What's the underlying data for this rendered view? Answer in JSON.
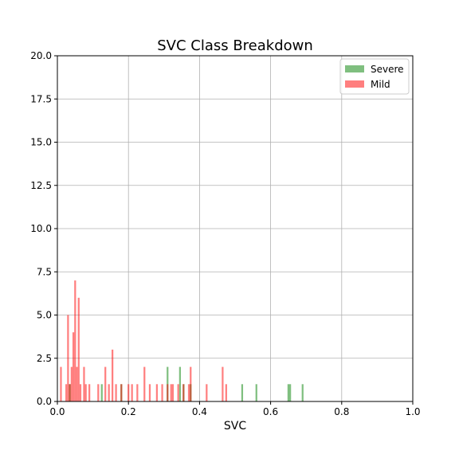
{
  "chart_data": {
    "type": "bar",
    "subtype": "overlaid-histogram",
    "title": "SVC Class Breakdown",
    "xlabel": "SVC",
    "ylabel": "",
    "xlim": [
      0.0,
      1.0
    ],
    "ylim": [
      0,
      20
    ],
    "bin_width": 0.005,
    "x_ticks": [
      "0.0",
      "0.2",
      "0.4",
      "0.6",
      "0.8",
      "1.0"
    ],
    "y_ticks": [
      "0.0",
      "2.5",
      "5.0",
      "7.5",
      "10.0",
      "12.5",
      "15.0",
      "17.5",
      "20.0"
    ],
    "grid": true,
    "legend_position": "top-right",
    "series": [
      {
        "name": "Severe",
        "color": "#008000",
        "opacity": 0.5,
        "bins": [
          {
            "x": 0.035,
            "count": 1
          },
          {
            "x": 0.125,
            "count": 1
          },
          {
            "x": 0.18,
            "count": 1
          },
          {
            "x": 0.31,
            "count": 2
          },
          {
            "x": 0.345,
            "count": 2
          },
          {
            "x": 0.355,
            "count": 1
          },
          {
            "x": 0.375,
            "count": 1
          },
          {
            "x": 0.52,
            "count": 1
          },
          {
            "x": 0.56,
            "count": 1
          },
          {
            "x": 0.65,
            "count": 1
          },
          {
            "x": 0.655,
            "count": 1
          },
          {
            "x": 0.69,
            "count": 1
          }
        ]
      },
      {
        "name": "Mild",
        "color": "#ff0000",
        "opacity": 0.5,
        "bins": [
          {
            "x": 0.01,
            "count": 2
          },
          {
            "x": 0.025,
            "count": 1
          },
          {
            "x": 0.03,
            "count": 5
          },
          {
            "x": 0.035,
            "count": 1
          },
          {
            "x": 0.04,
            "count": 2
          },
          {
            "x": 0.045,
            "count": 4
          },
          {
            "x": 0.05,
            "count": 7
          },
          {
            "x": 0.055,
            "count": 2
          },
          {
            "x": 0.06,
            "count": 6
          },
          {
            "x": 0.065,
            "count": 1
          },
          {
            "x": 0.075,
            "count": 2
          },
          {
            "x": 0.08,
            "count": 1
          },
          {
            "x": 0.09,
            "count": 1
          },
          {
            "x": 0.115,
            "count": 1
          },
          {
            "x": 0.135,
            "count": 2
          },
          {
            "x": 0.145,
            "count": 1
          },
          {
            "x": 0.155,
            "count": 3
          },
          {
            "x": 0.165,
            "count": 1
          },
          {
            "x": 0.18,
            "count": 1
          },
          {
            "x": 0.2,
            "count": 1
          },
          {
            "x": 0.21,
            "count": 1
          },
          {
            "x": 0.225,
            "count": 1
          },
          {
            "x": 0.245,
            "count": 2
          },
          {
            "x": 0.26,
            "count": 1
          },
          {
            "x": 0.28,
            "count": 1
          },
          {
            "x": 0.295,
            "count": 1
          },
          {
            "x": 0.31,
            "count": 1
          },
          {
            "x": 0.32,
            "count": 1
          },
          {
            "x": 0.325,
            "count": 1
          },
          {
            "x": 0.34,
            "count": 1
          },
          {
            "x": 0.355,
            "count": 1
          },
          {
            "x": 0.37,
            "count": 1
          },
          {
            "x": 0.375,
            "count": 2
          },
          {
            "x": 0.42,
            "count": 1
          },
          {
            "x": 0.465,
            "count": 2
          },
          {
            "x": 0.475,
            "count": 1
          }
        ]
      }
    ]
  }
}
